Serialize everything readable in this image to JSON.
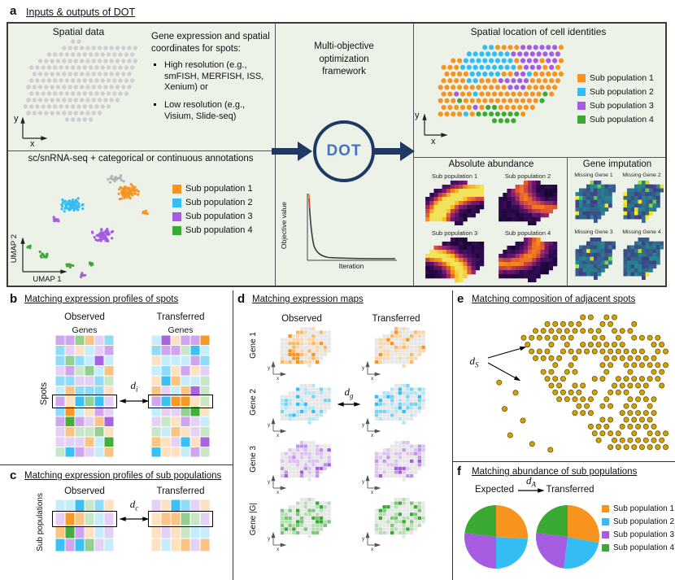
{
  "palette": {
    "pop1": "#F7941E",
    "pop2": "#33BDF2",
    "pop3": "#A55CE0",
    "pop4": "#3BAA35",
    "navy": "#1F3864",
    "dot_blue": "#4472C4",
    "panel_bg": "#EDF2E9",
    "gray_dot": "#CFCFCF",
    "gold": "#D2A106",
    "gold_edge": "#6B5500"
  },
  "sub_populations": [
    "Sub population 1",
    "Sub population 2",
    "Sub population 3",
    "Sub population 4"
  ],
  "panel_a": {
    "label": "a",
    "title": "Inputs & outputs of DOT",
    "spatial": {
      "title": "Spatial data",
      "x_label": "x",
      "y_label": "y"
    },
    "description": {
      "intro": "Gene expression and spatial coordinates for spots:",
      "bullets": [
        "High resolution (e.g., smFISH, MERFISH, ISS, Xenium) or",
        "Low resolution (e.g., Visium, Slide-seq)"
      ]
    },
    "sc_title": "sc/snRNA-seq + categorical or continuous annotations",
    "umap": {
      "x_label": "UMAP 1",
      "y_label": "UMAP 2"
    },
    "framework": "Multi-objective optimization framework",
    "dot_label": "DOT",
    "objective_plot": {
      "y_label": "Objective value",
      "x_label": "Iteration"
    },
    "location": {
      "title": "Spatial location of cell identities",
      "x_label": "x",
      "y_label": "y"
    },
    "abundance": {
      "title": "Absolute abundance",
      "maps": [
        "Sub population 1",
        "Sub population 2",
        "Sub population 3",
        "Sub population 4"
      ]
    },
    "imputation": {
      "title": "Gene imputation",
      "maps": [
        "Missing Gene 1",
        "Missing Gene 2",
        "Missing Gene 3",
        "Missing Gene 4"
      ]
    }
  },
  "panel_b": {
    "label": "b",
    "title": "Matching expression profiles of spots",
    "observed": "Observed",
    "transferred": "Transferred",
    "genes": "Genes",
    "rows_label": "Spots",
    "metric": {
      "symbol": "d",
      "sub": "i"
    }
  },
  "panel_c": {
    "label": "c",
    "title": "Matching expression profiles of sub populations",
    "observed": "Observed",
    "transferred": "Transferred",
    "rows_label": "Sub populations",
    "metric": {
      "symbol": "d",
      "sub": "c"
    }
  },
  "panel_d": {
    "label": "d",
    "title": "Matching expression maps",
    "observed": "Observed",
    "transferred": "Transferred",
    "rows": [
      "Gene 1",
      "Gene 2",
      "Gene 3",
      "Gene |G|"
    ],
    "metric": {
      "symbol": "d",
      "sub": "g"
    },
    "x_label": "x",
    "y_label": "y"
  },
  "panel_e": {
    "label": "e",
    "title": "Matching composition of adjacent spots",
    "metric": {
      "symbol": "d",
      "sub": "S"
    }
  },
  "panel_f": {
    "label": "f",
    "title": "Matching abundance of sub populations",
    "expected": "Expected",
    "transferred": "Transferred",
    "metric": {
      "symbol": "d",
      "sub": "A"
    },
    "pies": {
      "expected": [
        0.26,
        0.24,
        0.27,
        0.23
      ],
      "transferred": [
        0.28,
        0.24,
        0.25,
        0.23
      ]
    }
  }
}
